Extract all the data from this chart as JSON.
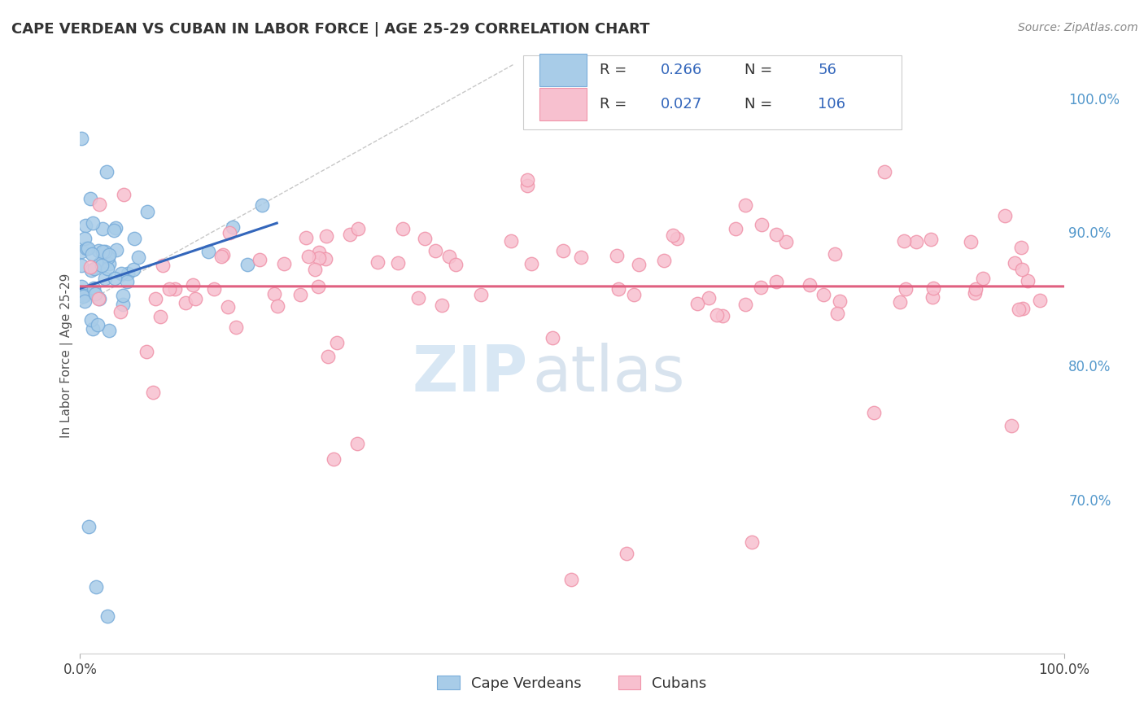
{
  "title": "CAPE VERDEAN VS CUBAN IN LABOR FORCE | AGE 25-29 CORRELATION CHART",
  "source_text": "Source: ZipAtlas.com",
  "ylabel": "In Labor Force | Age 25-29",
  "xlim": [
    0.0,
    1.0
  ],
  "ylim": [
    0.585,
    1.03
  ],
  "cape_verdean_color": "#a8cce8",
  "cuban_color": "#f7c0cf",
  "cape_verdean_edge": "#7aadda",
  "cuban_edge": "#f094aa",
  "trend_blue": "#3366bb",
  "trend_pink": "#e06080",
  "R_cv": 0.266,
  "N_cv": 56,
  "R_cu": 0.027,
  "N_cu": 106,
  "legend_label_cv": "Cape Verdeans",
  "legend_label_cu": "Cubans",
  "background_color": "#ffffff",
  "grid_color": "#e8e8e8",
  "title_color": "#333333",
  "axis_label_color": "#555555",
  "right_tick_color": "#5599cc",
  "text_black": "#333333",
  "val_blue": "#3366bb"
}
